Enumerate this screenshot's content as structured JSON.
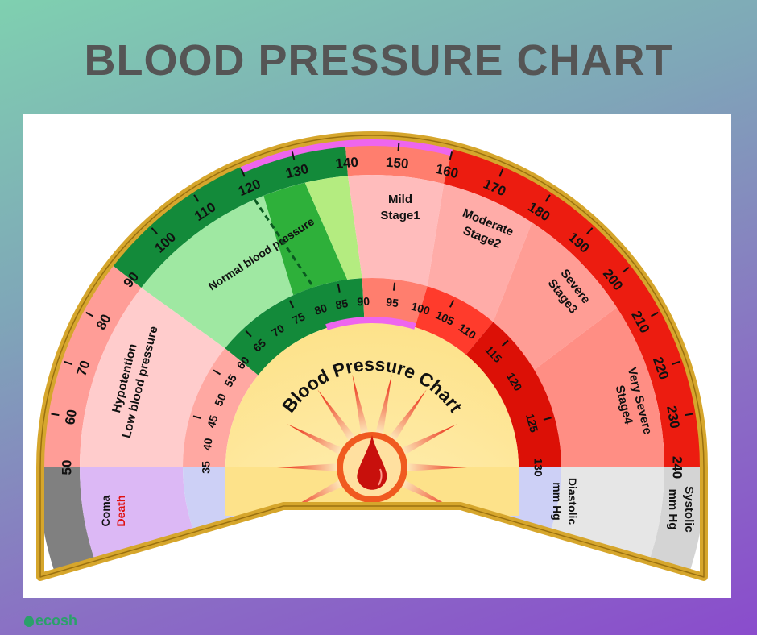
{
  "title": "BLOOD PRESSURE CHART",
  "center_title": "Blood Pressure Chart",
  "logo": "ecosh",
  "systolic": {
    "labels": [
      "50",
      "60",
      "70",
      "80",
      "90",
      "100",
      "110",
      "120",
      "130",
      "140",
      "150",
      "160",
      "170",
      "180",
      "190",
      "200",
      "210",
      "220",
      "230",
      "240"
    ],
    "unit_line1": "Systolic",
    "unit_line2": "mm Hg",
    "bands": [
      {
        "from": 50,
        "to": 90,
        "color": "#ff9d97"
      },
      {
        "from": 90,
        "to": 140,
        "color": "#138a3a"
      },
      {
        "from": 140,
        "to": 160,
        "color": "#ff7e6e"
      },
      {
        "from": 160,
        "to": 240,
        "color": "#ec1c10"
      }
    ],
    "highlight": {
      "from": 120,
      "to": 160,
      "color": "#ee66ee"
    }
  },
  "diastolic": {
    "labels": [
      "35",
      "40",
      "45",
      "50",
      "55",
      "60",
      "65",
      "70",
      "75",
      "80",
      "85",
      "90",
      "95",
      "100",
      "105",
      "110",
      "115",
      "120",
      "125",
      "130"
    ],
    "unit_line1": "Diastolic",
    "unit_line2": "mm Hg",
    "bands": [
      {
        "from": 35,
        "to": 60,
        "color": "#ffa8a2"
      },
      {
        "from": 60,
        "to": 90,
        "color": "#138a3a"
      },
      {
        "from": 90,
        "to": 100,
        "color": "#ff7e6e"
      },
      {
        "from": 100,
        "to": 112,
        "color": "#ff3b2c"
      },
      {
        "from": 112,
        "to": 130,
        "color": "#dc1006"
      }
    ],
    "highlight": {
      "from": 80,
      "to": 100,
      "color": "#ee66ee"
    }
  },
  "categories": [
    {
      "line1": "Hypotention",
      "line2": "Low blood pressure",
      "sys": [
        50,
        90
      ],
      "dia": [
        35,
        60
      ],
      "color": "#ffcccc"
    },
    {
      "line1": "Normal blood pressure",
      "line2": "",
      "sys": [
        90,
        122
      ],
      "dia": [
        60,
        76
      ],
      "color": "#9fe8a2"
    },
    {
      "line1": "",
      "line2": "",
      "sys": [
        122,
        131
      ],
      "dia": [
        76,
        87
      ],
      "color": "#2eb03a"
    },
    {
      "line1": "",
      "line2": "",
      "sys": [
        131,
        140
      ],
      "dia": [
        87,
        90
      ],
      "color": "#b4ec80"
    },
    {
      "line1": "Mild",
      "line2": "Stage1",
      "sys": [
        140,
        160
      ],
      "dia": [
        90,
        100
      ],
      "color": "#ffbcbc"
    },
    {
      "line1": "Moderate",
      "line2": "Stage2",
      "sys": [
        160,
        180
      ],
      "dia": [
        100,
        112
      ],
      "color": "#ffaca8"
    },
    {
      "line1": "Severe",
      "line2": "Stage3",
      "sys": [
        180,
        205
      ],
      "dia": [
        112,
        120
      ],
      "color": "#ff9d95"
    },
    {
      "line1": "Very Severe",
      "line2": "Stage4",
      "sys": [
        205,
        240
      ],
      "dia": [
        120,
        130
      ],
      "color": "#ff8e84"
    }
  ],
  "low_region": {
    "line1": "Coma",
    "line2": "Death",
    "death_color": "#e01010",
    "color": "#dcb8f5",
    "outer_color": "#808080"
  },
  "unit_region": {
    "color": "#e6e6e6",
    "outer_color": "#d4d4d4",
    "inner_color": "#cdd0f6"
  },
  "colors": {
    "center": "#fde28a",
    "rim": "#d6a62c",
    "normal_divider": "#0a5a20"
  }
}
